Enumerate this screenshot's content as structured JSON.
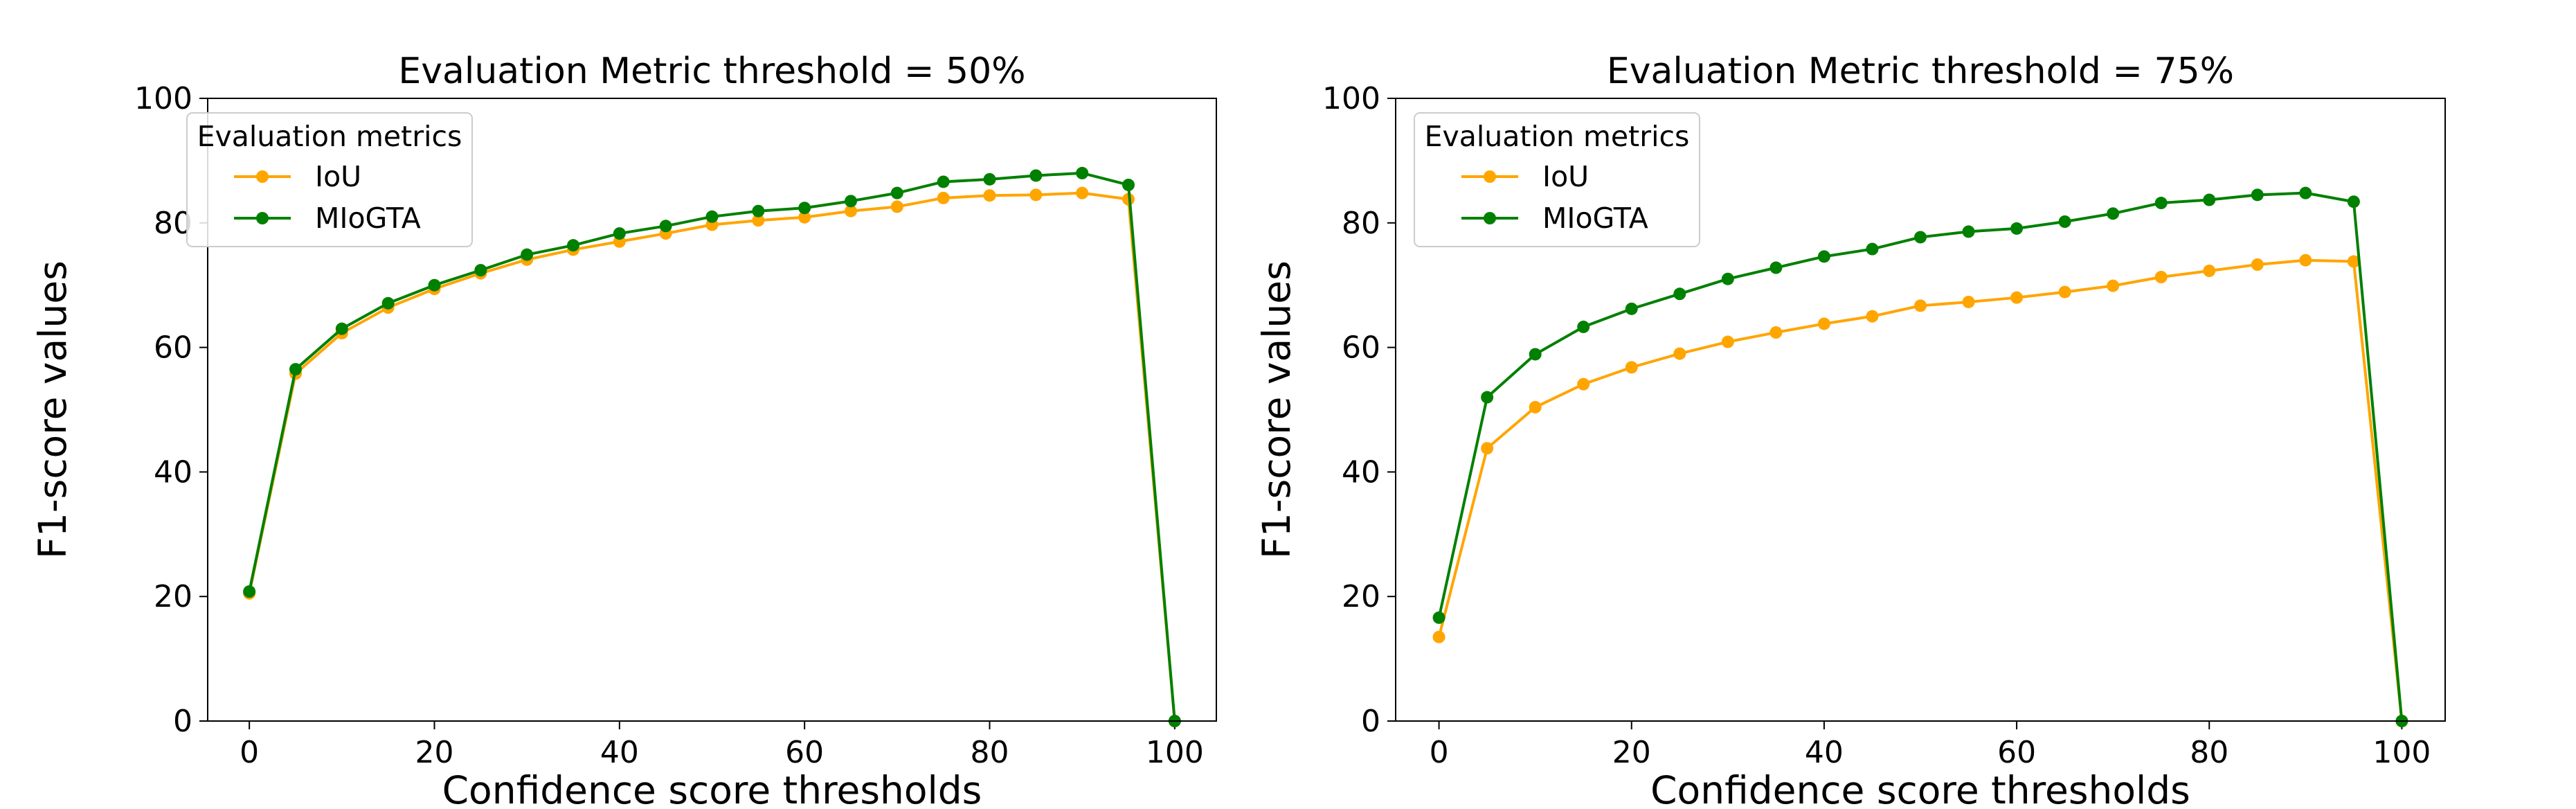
{
  "chart_data": [
    {
      "type": "line",
      "title": "Evaluation Metric threshold = 50%",
      "xlabel": "Confidence score thresholds",
      "ylabel": "F1-score values",
      "xlim": [
        -4.5,
        104.5
      ],
      "ylim": [
        0,
        100
      ],
      "xticks": [
        0,
        20,
        40,
        60,
        80,
        100
      ],
      "yticks": [
        0,
        20,
        40,
        60,
        80,
        100
      ],
      "legend": {
        "title": "Evaluation metrics",
        "location": "upper-left"
      },
      "x": [
        0,
        5,
        10,
        15,
        20,
        25,
        30,
        35,
        40,
        45,
        50,
        55,
        60,
        65,
        70,
        75,
        80,
        85,
        90,
        95,
        100
      ],
      "series": [
        {
          "name": "IoU",
          "color": "#ffa500",
          "values": [
            20.5,
            55.8,
            62.3,
            66.4,
            69.4,
            71.9,
            74.1,
            75.7,
            77.0,
            78.3,
            79.7,
            80.4,
            80.9,
            81.9,
            82.6,
            84.0,
            84.4,
            84.5,
            84.8,
            83.8,
            0
          ]
        },
        {
          "name": "MIoGTA",
          "color": "#008000",
          "values": [
            20.8,
            56.5,
            63.0,
            67.1,
            70.0,
            72.4,
            74.9,
            76.4,
            78.3,
            79.5,
            81.0,
            81.9,
            82.4,
            83.5,
            84.8,
            86.6,
            87.0,
            87.6,
            88.0,
            86.1,
            0
          ]
        }
      ]
    },
    {
      "type": "line",
      "title": "Evaluation Metric threshold = 75%",
      "xlabel": "Confidence score thresholds",
      "ylabel": "F1-score values",
      "xlim": [
        -4.5,
        104.5
      ],
      "ylim": [
        0,
        100
      ],
      "xticks": [
        0,
        20,
        40,
        60,
        80,
        100
      ],
      "yticks": [
        0,
        20,
        40,
        60,
        80,
        100
      ],
      "legend": {
        "title": "Evaluation metrics",
        "location": "upper-left"
      },
      "x": [
        0,
        5,
        10,
        15,
        20,
        25,
        30,
        35,
        40,
        45,
        50,
        55,
        60,
        65,
        70,
        75,
        80,
        85,
        90,
        95,
        100
      ],
      "series": [
        {
          "name": "IoU",
          "color": "#ffa500",
          "values": [
            13.5,
            43.8,
            50.4,
            54.1,
            56.8,
            59.0,
            60.9,
            62.4,
            63.8,
            65.0,
            66.7,
            67.3,
            68.0,
            68.9,
            69.9,
            71.3,
            72.3,
            73.3,
            74.0,
            73.8,
            0
          ]
        },
        {
          "name": "MIoGTA",
          "color": "#008000",
          "values": [
            16.6,
            52.0,
            58.9,
            63.3,
            66.2,
            68.6,
            71.0,
            72.8,
            74.6,
            75.8,
            77.7,
            78.6,
            79.1,
            80.2,
            81.5,
            83.2,
            83.7,
            84.5,
            84.8,
            83.4,
            0
          ]
        }
      ]
    }
  ]
}
